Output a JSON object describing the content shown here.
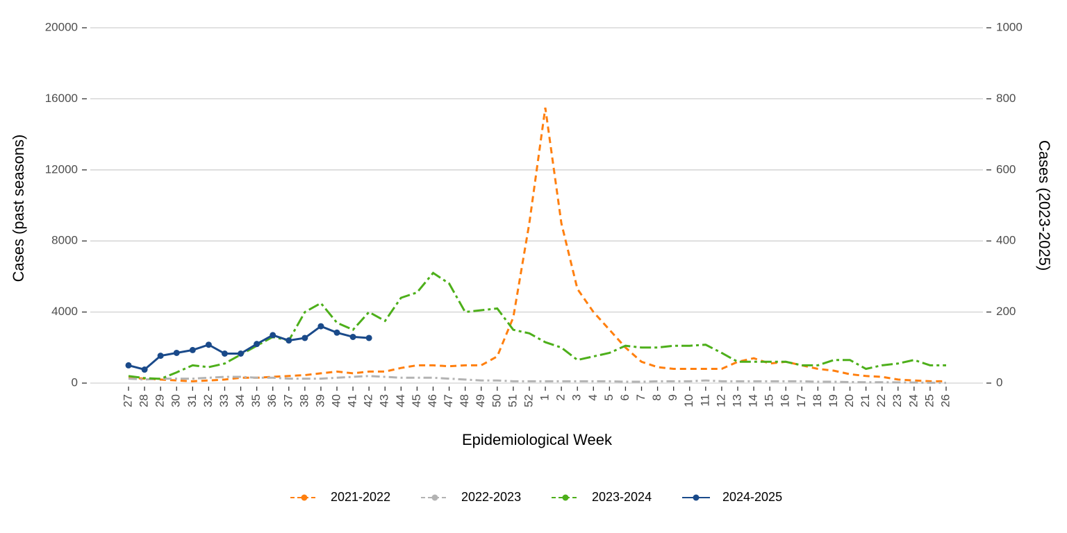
{
  "chart_data": {
    "type": "line",
    "x_label": "Epidemiological Week",
    "y_label": "Cases (past seasons)",
    "y2_label": "Cases (2023-2025)",
    "categories": [
      "27",
      "28",
      "29",
      "30",
      "31",
      "32",
      "33",
      "34",
      "35",
      "36",
      "37",
      "38",
      "39",
      "40",
      "41",
      "42",
      "43",
      "44",
      "45",
      "46",
      "47",
      "48",
      "49",
      "50",
      "51",
      "52",
      "1",
      "2",
      "3",
      "4",
      "5",
      "6",
      "7",
      "8",
      "9",
      "10",
      "11",
      "12",
      "13",
      "14",
      "15",
      "16",
      "17",
      "18",
      "19",
      "20",
      "21",
      "22",
      "23",
      "24",
      "25",
      "26"
    ],
    "ylim": [
      0,
      20000
    ],
    "yticks": [
      0,
      4000,
      8000,
      12000,
      16000,
      20000
    ],
    "y2lim": [
      0,
      1000
    ],
    "y2ticks": [
      0,
      200,
      400,
      600,
      800,
      1000
    ],
    "grid": true,
    "legend": "bottom",
    "series": [
      {
        "name": "2021-2022",
        "color": "#ff7f0e",
        "linestyle": "dashed",
        "axis": "y",
        "values": [
          300,
          250,
          200,
          150,
          100,
          150,
          200,
          300,
          300,
          350,
          400,
          450,
          550,
          650,
          550,
          650,
          650,
          850,
          1000,
          1000,
          950,
          1000,
          1000,
          1500,
          3700,
          9000,
          15500,
          9000,
          5300,
          4000,
          3000,
          2000,
          1200,
          900,
          800,
          800,
          800,
          800,
          1200,
          1400,
          1100,
          1200,
          1000,
          800,
          700,
          500,
          400,
          350,
          200,
          150,
          100,
          100
        ]
      },
      {
        "name": "2022-2023",
        "color": "#b3b3b3",
        "linestyle": "dashdot",
        "axis": "y",
        "values": [
          250,
          200,
          250,
          250,
          250,
          300,
          350,
          350,
          300,
          300,
          250,
          250,
          250,
          300,
          350,
          400,
          350,
          300,
          300,
          300,
          250,
          200,
          150,
          150,
          100,
          100,
          100,
          100,
          100,
          100,
          100,
          80,
          80,
          100,
          100,
          100,
          150,
          100,
          100,
          100,
          100,
          100,
          100,
          80,
          80,
          60,
          50,
          50,
          40,
          30,
          20,
          10
        ]
      },
      {
        "name": "2023-2024",
        "color": "#4daf1a",
        "linestyle": "longdash",
        "axis": "y2",
        "values": [
          20,
          14,
          12,
          30,
          50,
          45,
          55,
          80,
          105,
          130,
          120,
          200,
          225,
          170,
          150,
          200,
          175,
          240,
          255,
          310,
          280,
          200,
          205,
          210,
          150,
          140,
          115,
          100,
          65,
          75,
          85,
          105,
          100,
          100,
          105,
          105,
          108,
          85,
          60,
          60,
          60,
          60,
          50,
          50,
          65,
          65,
          40,
          50,
          55,
          65,
          50,
          50
        ]
      },
      {
        "name": "2024-2025",
        "color": "#1a4a8a",
        "linestyle": "solid",
        "axis": "y2",
        "markers": true,
        "values": [
          50,
          38,
          77,
          85,
          93,
          108,
          83,
          83,
          110,
          135,
          120,
          127,
          160,
          142,
          130,
          127,
          null,
          null,
          null,
          null,
          null,
          null,
          null,
          null,
          null,
          null,
          null,
          null,
          null,
          null,
          null,
          null,
          null,
          null,
          null,
          null,
          null,
          null,
          null,
          null,
          null,
          null,
          null,
          null,
          null,
          null,
          null,
          null,
          null,
          null,
          null,
          null
        ]
      }
    ]
  }
}
